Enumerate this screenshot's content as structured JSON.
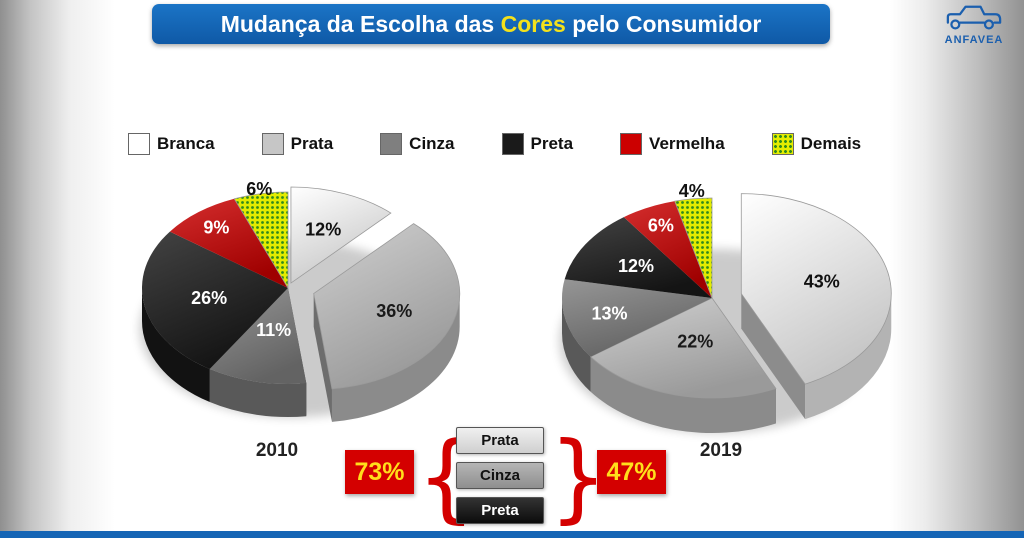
{
  "header": {
    "title_prefix": "Mudança da Escolha das ",
    "title_highlight": "Cores",
    "title_suffix": " pelo Consumidor",
    "logo_text": "ANFAVEA"
  },
  "theme": {
    "banner_blue": "#1565b5",
    "highlight_yellow": "#f3e11c",
    "summary_red": "#d40000",
    "summary_yellow": "#ffdf1b",
    "logo_blue": "#1b5fae"
  },
  "legend": {
    "items": [
      {
        "label": "Branca",
        "color": "#ffffff"
      },
      {
        "label": "Prata",
        "color": "#c6c6c6"
      },
      {
        "label": "Cinza",
        "color": "#7f7f7f"
      },
      {
        "label": "Preta",
        "color": "#1a1a1a"
      },
      {
        "label": "Vermelha",
        "color": "#cc0000"
      },
      {
        "label": "Demais",
        "color": "#e3eb00",
        "pattern": "green-dots"
      }
    ]
  },
  "chart_data": [
    {
      "type": "pie",
      "title": "2010",
      "unit": "%",
      "legend_position": "top",
      "categories": [
        "Branca",
        "Prata",
        "Cinza",
        "Preta",
        "Vermelha",
        "Demais"
      ],
      "values": [
        12,
        36,
        11,
        26,
        9,
        6
      ],
      "slices": [
        {
          "label": "Branca",
          "value": 12,
          "explode": 8,
          "lf": 0.6,
          "text_color": "#111111"
        },
        {
          "label": "Prata",
          "value": 36,
          "explode": 27,
          "lf": 0.58,
          "text_color": "#1a1a1a"
        },
        {
          "label": "Cinza",
          "value": 11,
          "explode": 0,
          "lf": 0.45,
          "text_color": "#ffffff"
        },
        {
          "label": "Preta",
          "value": 26,
          "explode": 0,
          "lf": 0.55,
          "text_color": "#ffffff"
        },
        {
          "label": "Vermelha",
          "value": 9,
          "explode": 0,
          "lf": 0.8,
          "text_color": "#ffffff"
        },
        {
          "label": "Demais",
          "value": 6,
          "explode": 0,
          "lf": 1.05,
          "text_color": "#111111",
          "label_outside": true
        }
      ]
    },
    {
      "type": "pie",
      "title": "2019",
      "unit": "%",
      "legend_position": "top",
      "categories": [
        "Branca",
        "Prata",
        "Cinza",
        "Preta",
        "Vermelha",
        "Demais"
      ],
      "values": [
        43,
        22,
        13,
        12,
        6,
        4
      ],
      "slices": [
        {
          "label": "Branca",
          "value": 43,
          "explode": 30,
          "lf": 0.55,
          "text_color": "#111111"
        },
        {
          "label": "Prata",
          "value": 22,
          "explode": 0,
          "lf": 0.45,
          "text_color": "#1a1a1a"
        },
        {
          "label": "Cinza",
          "value": 13,
          "explode": 0,
          "lf": 0.7,
          "text_color": "#ffffff"
        },
        {
          "label": "Preta",
          "value": 12,
          "explode": 0,
          "lf": 0.6,
          "text_color": "#ffffff"
        },
        {
          "label": "Vermelha",
          "value": 6,
          "explode": 0,
          "lf": 0.8,
          "text_color": "#ffffff"
        },
        {
          "label": "Demais",
          "value": 4,
          "explode": 0,
          "lf": 1.08,
          "text_color": "#111111",
          "label_outside": true
        }
      ]
    }
  ],
  "summary": {
    "left_value": "73%",
    "right_value": "47%",
    "group_items": [
      "Prata",
      "Cinza",
      "Preta"
    ],
    "brace_left": "{",
    "brace_right": "}"
  }
}
